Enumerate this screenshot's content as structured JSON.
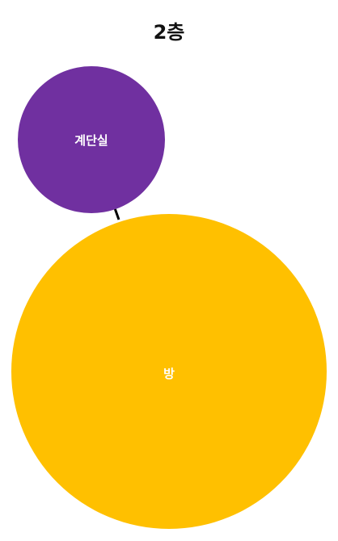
{
  "title": "2층",
  "nodes": [
    {
      "id": "stairwell",
      "label": "계단실",
      "color": "#7030A0",
      "label_color": "#ffffff"
    },
    {
      "id": "room",
      "label": "방",
      "color": "#FFC000",
      "label_color": "#ffffff"
    }
  ],
  "edges": [
    {
      "from": "stairwell",
      "to": "room",
      "color": "#000000"
    }
  ]
}
